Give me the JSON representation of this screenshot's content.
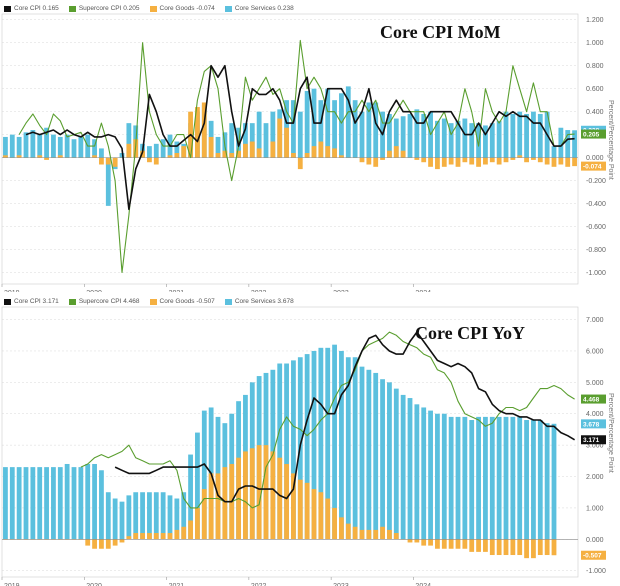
{
  "chart_data": [
    {
      "type": "bar",
      "title": "Core CPI MoM",
      "ylabel": "Percent/Percentage Point",
      "ylim": [
        -1.1,
        1.25
      ],
      "yticks": [
        1.2,
        1.0,
        0.8,
        0.6,
        0.4,
        0.2,
        0.0,
        -0.2,
        -0.4,
        -0.6,
        -0.8,
        -1.0
      ],
      "ytick_labels": [
        "1.200",
        "1.000",
        "0.800",
        "0.600",
        "0.400",
        "0.200",
        "0.000",
        "-0.200",
        "-0.400",
        "-0.600",
        "-0.800",
        "-1.000"
      ],
      "xtick_labels": [
        "2019",
        "2020",
        "2021",
        "2022",
        "2023",
        "2024"
      ],
      "x_start": "2019-01",
      "grid": true,
      "legend": [
        {
          "label": "Core CPI",
          "value": "0.165",
          "color": "#111111"
        },
        {
          "label": "Supercore CPI",
          "value": "0.205",
          "color": "#5a9e2f"
        },
        {
          "label": "Core Goods",
          "value": "-0.074",
          "color": "#f5b041"
        },
        {
          "label": "Core Services",
          "value": "0.238",
          "color": "#5bc0de"
        }
      ],
      "last_value_flags": [
        {
          "series": "Core Services",
          "text": "0.238",
          "color": "#5bc0de",
          "y": 0.238
        },
        {
          "series": "Supercore CPI",
          "text": "0.205",
          "color": "#5a9e2f",
          "y": 0.205
        },
        {
          "series": "Core Goods",
          "text": "-0.074",
          "color": "#f5b041",
          "y": -0.074
        }
      ],
      "series": [
        {
          "name": "Core Services",
          "kind": "bar",
          "color": "#5bc0de",
          "values": [
            0.18,
            0.2,
            0.18,
            0.22,
            0.24,
            0.2,
            0.26,
            0.2,
            0.18,
            0.2,
            0.16,
            0.18,
            0.2,
            0.16,
            0.08,
            -0.42,
            -0.1,
            0.04,
            0.3,
            0.28,
            0.12,
            0.1,
            0.12,
            0.16,
            0.2,
            0.14,
            0.12,
            0.3,
            0.4,
            0.46,
            0.32,
            0.18,
            0.22,
            0.3,
            0.26,
            0.3,
            0.3,
            0.4,
            0.3,
            0.4,
            0.42,
            0.5,
            0.5,
            0.4,
            0.58,
            0.6,
            0.5,
            0.6,
            0.5,
            0.56,
            0.62,
            0.5,
            0.4,
            0.48,
            0.48,
            0.4,
            0.38,
            0.34,
            0.36,
            0.38,
            0.42,
            0.38,
            0.4,
            0.32,
            0.34,
            0.3,
            0.32,
            0.34,
            0.3,
            0.3,
            0.28,
            0.3,
            0.32,
            0.4,
            0.38,
            0.4,
            0.38,
            0.4,
            0.38,
            0.4,
            0.1,
            0.26,
            0.24,
            0.238
          ]
        },
        {
          "name": "Core Goods",
          "kind": "bar",
          "color": "#f5b041",
          "values": [
            0.02,
            0.0,
            0.02,
            0.0,
            0.0,
            0.02,
            -0.02,
            0.0,
            0.02,
            0.0,
            0.0,
            0.0,
            0.0,
            0.02,
            -0.06,
            -0.06,
            -0.08,
            0.0,
            0.12,
            0.16,
            0.06,
            -0.04,
            -0.06,
            0.0,
            0.02,
            0.04,
            0.1,
            0.4,
            0.44,
            0.48,
            0.18,
            0.04,
            0.06,
            0.04,
            0.06,
            0.12,
            0.14,
            0.08,
            0.0,
            0.14,
            0.34,
            0.26,
            0.04,
            -0.1,
            0.04,
            0.1,
            0.14,
            0.1,
            0.08,
            0.02,
            0.0,
            0.0,
            -0.04,
            -0.06,
            -0.08,
            -0.02,
            0.06,
            0.1,
            0.06,
            0.0,
            -0.02,
            -0.04,
            -0.08,
            -0.1,
            -0.08,
            -0.06,
            -0.08,
            -0.04,
            -0.06,
            -0.08,
            -0.06,
            -0.04,
            -0.06,
            -0.04,
            -0.02,
            0.02,
            -0.04,
            -0.02,
            -0.04,
            -0.06,
            -0.08,
            -0.06,
            -0.08,
            -0.074
          ]
        },
        {
          "name": "Core CPI",
          "kind": "line",
          "color": "#111111",
          "values": [
            0.2,
            0.22,
            0.2,
            0.22,
            0.24,
            0.2,
            0.24,
            0.2,
            0.18,
            0.22,
            0.18,
            0.18,
            0.2,
            0.18,
            0.08,
            -0.45,
            -0.1,
            0.05,
            0.55,
            0.4,
            0.2,
            0.1,
            0.1,
            0.15,
            0.2,
            0.14,
            0.3,
            0.8,
            0.7,
            0.8,
            0.4,
            0.1,
            0.25,
            0.6,
            0.55,
            0.55,
            0.6,
            0.5,
            0.3,
            0.3,
            0.6,
            0.7,
            0.3,
            0.3,
            0.6,
            0.6,
            0.6,
            0.5,
            0.3,
            0.4,
            0.6,
            0.3,
            0.2,
            0.4,
            0.5,
            0.4,
            0.4,
            0.3,
            0.3,
            0.4,
            0.4,
            0.4,
            0.4,
            0.3,
            0.2,
            0.2,
            0.3,
            0.2,
            0.3,
            0.4,
            0.36,
            0.4,
            0.36,
            0.36,
            0.3,
            0.3,
            0.2,
            0.1,
            0.1,
            0.16,
            0.165
          ]
        },
        {
          "name": "Supercore CPI",
          "kind": "line",
          "color": "#5a9e2f",
          "values": [
            0.2,
            0.3,
            0.38,
            0.28,
            0.2,
            0.38,
            0.32,
            0.18,
            0.2,
            0.22,
            0.1,
            0.1,
            0.3,
            0.1,
            -0.2,
            -1.0,
            -0.5,
            0.1,
            1.0,
            0.4,
            0.2,
            0.1,
            0.1,
            0.2,
            0.2,
            0.0,
            0.5,
            0.75,
            0.8,
            0.6,
            0.1,
            -0.2,
            0.1,
            0.7,
            0.5,
            0.6,
            0.7,
            0.55,
            0.6,
            0.4,
            0.3,
            1.02,
            0.6,
            0.7,
            0.6,
            0.4,
            0.4,
            0.3,
            0.4,
            0.4,
            0.5,
            0.4,
            0.5,
            0.3,
            0.3,
            0.4,
            0.5,
            0.4,
            0.4,
            0.4,
            0.2,
            0.3,
            0.4,
            0.2,
            0.3,
            0.6,
            0.4,
            0.1,
            0.6,
            0.4,
            0.3,
            0.4,
            0.8,
            0.6,
            0.4,
            0.65,
            0.4,
            0.4,
            0.1,
            0.1,
            0.2,
            0.205
          ]
        }
      ]
    },
    {
      "type": "bar",
      "title": "Core CPI YoY",
      "ylabel": "Percent/Percentage Point",
      "ylim": [
        -1.2,
        7.4
      ],
      "yticks": [
        7,
        6,
        5,
        4,
        3,
        2,
        1,
        0,
        -1
      ],
      "ytick_labels": [
        "7.000",
        "6.000",
        "5.000",
        "4.000",
        "3.000",
        "2.000",
        "1.000",
        "0.000",
        "-1.000"
      ],
      "xtick_labels": [
        "2019",
        "2020",
        "2021",
        "2022",
        "2023",
        "2024"
      ],
      "x_start": "2019-01",
      "grid": true,
      "legend": [
        {
          "label": "Core CPI",
          "value": "3.171",
          "color": "#111111"
        },
        {
          "label": "Supercore CPI",
          "value": "4.468",
          "color": "#5a9e2f"
        },
        {
          "label": "Core Goods",
          "value": "-0.507",
          "color": "#f5b041"
        },
        {
          "label": "Core Services",
          "value": "3.678",
          "color": "#5bc0de"
        }
      ],
      "last_value_flags": [
        {
          "series": "Supercore CPI",
          "text": "4.468",
          "color": "#5a9e2f",
          "y": 4.468
        },
        {
          "series": "Core Services",
          "text": "3.678",
          "color": "#5bc0de",
          "y": 3.678
        },
        {
          "series": "Core CPI",
          "text": "3.171",
          "color": "#111111",
          "y": 3.171
        },
        {
          "series": "Core Goods",
          "text": "-0.507",
          "color": "#f5b041",
          "y": -0.507
        }
      ],
      "series": [
        {
          "name": "Core Services",
          "kind": "bar",
          "color": "#5bc0de",
          "values": [
            2.3,
            2.3,
            2.3,
            2.3,
            2.3,
            2.3,
            2.3,
            2.3,
            2.3,
            2.4,
            2.3,
            2.3,
            2.4,
            2.4,
            2.2,
            1.5,
            1.3,
            1.2,
            1.4,
            1.5,
            1.5,
            1.5,
            1.5,
            1.5,
            1.4,
            1.3,
            1.5,
            2.7,
            3.4,
            4.1,
            4.2,
            3.9,
            3.7,
            4.0,
            4.4,
            4.6,
            5.0,
            5.2,
            5.3,
            5.4,
            5.6,
            5.6,
            5.7,
            5.8,
            5.9,
            6.0,
            6.1,
            6.1,
            6.2,
            6.0,
            5.8,
            5.8,
            5.5,
            5.4,
            5.3,
            5.1,
            5.0,
            4.8,
            4.6,
            4.5,
            4.3,
            4.2,
            4.1,
            4.0,
            4.0,
            3.9,
            3.9,
            3.9,
            3.8,
            3.9,
            3.9,
            3.9,
            3.9,
            3.9,
            3.9,
            3.9,
            3.8,
            3.8,
            3.8,
            3.7,
            3.68
          ]
        },
        {
          "name": "Core Goods",
          "kind": "bar",
          "color": "#f5b041",
          "values": [
            0.0,
            0.0,
            0.0,
            0.0,
            0.0,
            0.0,
            0.0,
            0.0,
            0.0,
            0.0,
            0.0,
            0.0,
            -0.2,
            -0.3,
            -0.3,
            -0.3,
            -0.2,
            -0.1,
            0.1,
            0.2,
            0.2,
            0.2,
            0.2,
            0.2,
            0.2,
            0.3,
            0.4,
            0.6,
            1.0,
            1.6,
            2.1,
            2.1,
            2.3,
            2.4,
            2.6,
            2.8,
            2.9,
            3.0,
            3.0,
            2.8,
            2.6,
            2.4,
            2.1,
            1.9,
            1.8,
            1.6,
            1.5,
            1.3,
            1.0,
            0.7,
            0.5,
            0.4,
            0.3,
            0.3,
            0.3,
            0.4,
            0.3,
            0.2,
            0.0,
            -0.1,
            -0.1,
            -0.2,
            -0.2,
            -0.3,
            -0.3,
            -0.3,
            -0.3,
            -0.3,
            -0.4,
            -0.4,
            -0.4,
            -0.5,
            -0.5,
            -0.5,
            -0.5,
            -0.5,
            -0.6,
            -0.6,
            -0.5,
            -0.5,
            -0.507
          ]
        },
        {
          "name": "Core CPI",
          "kind": "line",
          "color": "#111111",
          "values": [
            2.3,
            2.2,
            2.1,
            2.1,
            2.1,
            2.1,
            2.2,
            2.3,
            2.3,
            2.3,
            2.3,
            2.3,
            2.3,
            2.4,
            2.1,
            1.4,
            1.2,
            1.2,
            1.6,
            1.7,
            1.7,
            1.6,
            1.6,
            1.6,
            1.4,
            1.3,
            1.6,
            3.0,
            3.8,
            4.5,
            4.3,
            4.0,
            4.0,
            4.6,
            4.9,
            5.5,
            6.0,
            6.4,
            6.5,
            6.2,
            6.0,
            5.9,
            5.9,
            6.3,
            6.6,
            6.3,
            6.0,
            5.7,
            5.6,
            5.5,
            5.6,
            5.5,
            5.3,
            4.8,
            4.7,
            4.3,
            4.1,
            4.0,
            4.0,
            3.9,
            3.9,
            3.8,
            3.8,
            3.6,
            3.6,
            3.4,
            3.3,
            3.171
          ]
        },
        {
          "name": "Supercore CPI",
          "kind": "line",
          "color": "#5a9e2f",
          "values": [
            2.3,
            2.4,
            2.6,
            2.7,
            2.6,
            2.7,
            2.8,
            3.0,
            2.6,
            2.5,
            2.4,
            2.4,
            2.4,
            2.5,
            2.2,
            1.3,
            1.0,
            1.0,
            1.3,
            1.3,
            1.3,
            1.2,
            1.2,
            1.3,
            1.2,
            1.0,
            1.1,
            2.3,
            2.7,
            3.5,
            3.9,
            3.6,
            3.5,
            3.3,
            3.5,
            3.8,
            4.0,
            4.5,
            4.9,
            5.0,
            5.4,
            6.0,
            6.2,
            6.3,
            6.4,
            6.6,
            6.5,
            6.3,
            6.2,
            6.1,
            5.9,
            5.8,
            5.4,
            5.3,
            5.0,
            4.4,
            4.0,
            3.9,
            3.8,
            3.6,
            3.7,
            4.0,
            4.2,
            4.2,
            4.1,
            4.2,
            4.5,
            4.8,
            4.8,
            4.9,
            4.8,
            4.6,
            4.468
          ]
        }
      ]
    }
  ]
}
